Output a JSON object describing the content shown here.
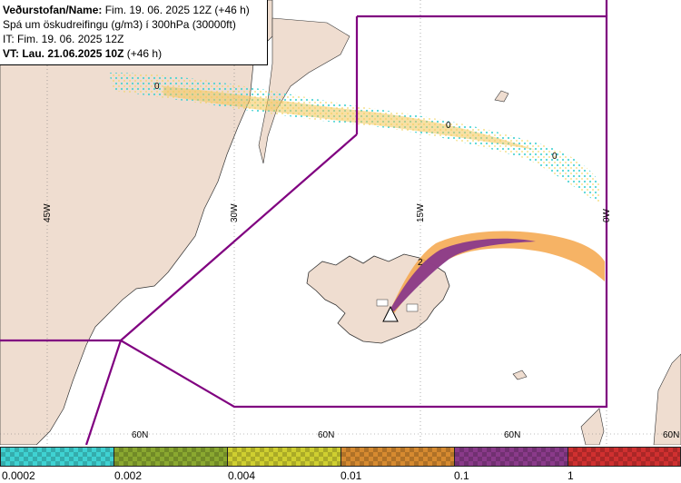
{
  "header": {
    "line1_label": "Veðurstofan/Name:",
    "line1_value": "Fim. 19. 06. 2025 12Z (+46 h)",
    "line2": "Spá um öskudreifingu (g/m3) í 300hPa (30000ft)",
    "line3": "IT: Fim. 19. 06. 2025 12Z",
    "line4_label": "VT: Lau. 21.06.2025 10Z",
    "line4_value": "(+46 h)"
  },
  "map": {
    "meridian_labels": [
      "45W",
      "30W",
      "15W",
      "0W"
    ],
    "parallel_labels": [
      "60N",
      "60N",
      "60N",
      "60N"
    ],
    "contour_labels": [
      "0",
      "0",
      "0",
      "2"
    ],
    "colors": {
      "land": "#efddd0",
      "sea": "#ffffff",
      "boundary": "#800080",
      "volcano_marker": "#ffffff"
    }
  },
  "legend": {
    "ticks": [
      "0.0002",
      "0.002",
      "0.004",
      "0.01",
      "0.1",
      "1"
    ],
    "colors": [
      "#3fd2d2",
      "#8aa830",
      "#cfcf30",
      "#d68a30",
      "#8a3a8a",
      "#d03030"
    ]
  }
}
